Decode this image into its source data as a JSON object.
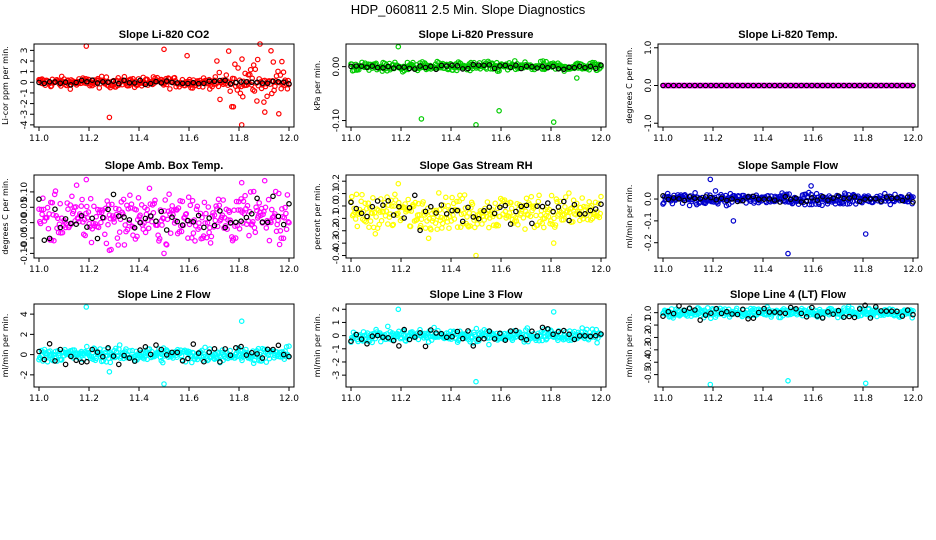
{
  "page_title": "HDP_060811  2.5 Min. Slope Diagnostics",
  "chart_data": [
    {
      "type": "scatter",
      "title": "Slope Li-820 CO2",
      "ylabel": "Li-cor ppm per min.",
      "xlim": [
        10.98,
        12.02
      ],
      "ylim": [
        -4.2,
        3.6
      ],
      "yticks": [
        -4,
        -3,
        -2,
        -1,
        0,
        1,
        2,
        3
      ],
      "ytick_labels": [
        "-4",
        "-3",
        "-2",
        "-1",
        "0",
        "1",
        "2",
        "3"
      ],
      "xticks": [
        11.0,
        11.2,
        11.4,
        11.6,
        11.8,
        12.0
      ],
      "xtick_labels": [
        "11.0",
        "11.2",
        "11.4",
        "11.6",
        "11.8",
        "12.0"
      ],
      "color": "#ff0000",
      "ref_color": "#000000",
      "center": 0.0,
      "spread": 0.35,
      "ref_spread": 0.15,
      "outlier_range": [
        11.7,
        11.98
      ],
      "outlier_spread": 2.0,
      "outlier_values": [
        3.4,
        3.1,
        -4.0,
        -3.3,
        2.5,
        -2.8
      ]
    },
    {
      "type": "scatter",
      "title": "Slope Li-820 Pressure",
      "ylabel": "kPa per min.",
      "xlim": [
        10.98,
        12.02
      ],
      "ylim": [
        -0.112,
        0.042
      ],
      "yticks": [
        -0.1,
        0.0
      ],
      "ytick_labels": [
        "-0.10",
        "0.00"
      ],
      "xticks": [
        11.0,
        11.2,
        11.4,
        11.6,
        11.8,
        12.0
      ],
      "xtick_labels": [
        "11.0",
        "11.2",
        "11.4",
        "11.6",
        "11.8",
        "12.0"
      ],
      "color": "#00cc00",
      "ref_color": "#000000",
      "center": 0.0,
      "spread": 0.006,
      "ref_spread": 0.004,
      "outlier_values": [
        0.037,
        -0.108,
        -0.103,
        -0.097,
        -0.082,
        -0.021
      ]
    },
    {
      "type": "scatter",
      "title": "Slope Li-820 Temp.",
      "ylabel": "degrees C per min.",
      "xlim": [
        10.98,
        12.02
      ],
      "ylim": [
        -1.1,
        1.1
      ],
      "yticks": [
        -1.0,
        0.0,
        1.0
      ],
      "ytick_labels": [
        "-1.0",
        "0.0",
        "1.0"
      ],
      "xticks": [
        11.0,
        11.2,
        11.4,
        11.6,
        11.8,
        12.0
      ],
      "xtick_labels": [
        "11.0",
        "11.2",
        "11.4",
        "11.6",
        "11.8",
        "12.0"
      ],
      "color": "#ff00ff",
      "ref_color": "#000000",
      "center": 0.0,
      "spread": 0.0,
      "ref_spread": 0.0,
      "outlier_values": []
    },
    {
      "type": "scatter",
      "title": "Slope Amb. Box Temp.",
      "ylabel": "degrees C per min.",
      "xlim": [
        10.98,
        12.02
      ],
      "ylim": [
        -0.115,
        0.155
      ],
      "yticks": [
        -0.1,
        -0.05,
        0.0,
        0.05,
        0.1
      ],
      "ytick_labels": [
        "-0.10",
        "-0.05",
        "0.00",
        "0.05",
        "0.10"
      ],
      "xticks": [
        11.0,
        11.2,
        11.4,
        11.6,
        11.8,
        12.0
      ],
      "xtick_labels": [
        "11.0",
        "11.2",
        "11.4",
        "11.6",
        "11.8",
        "12.0"
      ],
      "color": "#ff00ff",
      "ref_color": "#000000",
      "center": 0.015,
      "spread": 0.06,
      "ref_spread": 0.04,
      "outlier_values": [
        0.14,
        -0.1,
        0.13,
        -0.09
      ]
    },
    {
      "type": "scatter",
      "title": "Slope Gas Stream RH",
      "ylabel": "percent per min.",
      "xlim": [
        10.98,
        12.02
      ],
      "ylim": [
        -0.42,
        0.25
      ],
      "yticks": [
        -0.4,
        -0.3,
        -0.2,
        -0.1,
        0.0,
        0.1,
        0.2
      ],
      "ytick_labels": [
        "-0.4",
        "-0.3",
        "-0.2",
        "-0.1",
        "0.0",
        "0.1",
        "0.2"
      ],
      "xticks": [
        11.0,
        11.2,
        11.4,
        11.6,
        11.8,
        12.0
      ],
      "xtick_labels": [
        "11.0",
        "11.2",
        "11.4",
        "11.6",
        "11.8",
        "12.0"
      ],
      "color": "#ffff00",
      "ref_color": "#000000",
      "center": -0.05,
      "spread": 0.1,
      "ref_spread": 0.08,
      "outlier_values": [
        0.18,
        -0.4,
        -0.3
      ]
    },
    {
      "type": "scatter",
      "title": "Slope Sample Flow",
      "ylabel": "ml/min per min.",
      "xlim": [
        10.98,
        12.02
      ],
      "ylim": [
        -0.27,
        0.11
      ],
      "yticks": [
        -0.2,
        -0.1,
        0.0
      ],
      "ytick_labels": [
        "-0.2",
        "-0.1",
        "0.0"
      ],
      "xticks": [
        11.0,
        11.2,
        11.4,
        11.6,
        11.8,
        12.0
      ],
      "xtick_labels": [
        "11.0",
        "11.2",
        "11.4",
        "11.6",
        "11.8",
        "12.0"
      ],
      "color": "#0000cc",
      "ref_color": "#000000",
      "center": 0.0,
      "spread": 0.018,
      "ref_spread": 0.012,
      "outlier_values": [
        0.09,
        -0.25,
        -0.16,
        -0.1,
        0.06
      ]
    },
    {
      "type": "scatter",
      "title": "Slope Line 2 Flow",
      "ylabel": "ml/min per min.",
      "xlim": [
        10.98,
        12.02
      ],
      "ylim": [
        -3.2,
        5.0
      ],
      "yticks": [
        -2,
        0,
        2,
        4
      ],
      "ytick_labels": [
        "-2",
        "0",
        "2",
        "4"
      ],
      "xticks": [
        11.0,
        11.2,
        11.4,
        11.6,
        11.8,
        12.0
      ],
      "xtick_labels": [
        "11.0",
        "11.2",
        "11.4",
        "11.6",
        "11.8",
        "12.0"
      ],
      "color": "#00ffff",
      "ref_color": "#000000",
      "center": 0.0,
      "spread": 0.5,
      "ref_spread": 0.8,
      "outlier_values": [
        4.7,
        -2.9,
        3.3,
        -1.7
      ]
    },
    {
      "type": "scatter",
      "title": "Slope Line 3 Flow",
      "ylabel": "ml/min per min.",
      "xlim": [
        10.98,
        12.02
      ],
      "ylim": [
        -3.9,
        2.4
      ],
      "yticks": [
        -3,
        -2,
        -1,
        0,
        1,
        2
      ],
      "ytick_labels": [
        "-3",
        "-2",
        "-1",
        "0",
        "1",
        "2"
      ],
      "xticks": [
        11.0,
        11.2,
        11.4,
        11.6,
        11.8,
        12.0
      ],
      "xtick_labels": [
        "11.0",
        "11.2",
        "11.4",
        "11.6",
        "11.8",
        "12.0"
      ],
      "color": "#00ffff",
      "ref_color": "#000000",
      "center": 0.0,
      "spread": 0.35,
      "ref_spread": 0.6,
      "outlier_values": [
        2.0,
        -3.5,
        1.8
      ]
    },
    {
      "type": "scatter",
      "title": "Slope Line 4 (LT) Flow",
      "ylabel": "ml/min per min.",
      "xlim": [
        10.98,
        12.02
      ],
      "ylim": [
        -0.6,
        0.07
      ],
      "yticks": [
        -0.5,
        -0.4,
        -0.3,
        -0.2,
        -0.1,
        0.0
      ],
      "ytick_labels": [
        "-0.5",
        "-0.4",
        "-0.3",
        "-0.2",
        "-0.1",
        "0.0"
      ],
      "xticks": [
        11.0,
        11.2,
        11.4,
        11.6,
        11.8,
        12.0
      ],
      "xtick_labels": [
        "11.0",
        "11.2",
        "11.4",
        "11.6",
        "11.8",
        "12.0"
      ],
      "color": "#00ffff",
      "ref_color": "#000000",
      "center": 0.0,
      "spread": 0.025,
      "ref_spread": 0.04,
      "outlier_values": [
        -0.58,
        -0.55,
        -0.57
      ]
    }
  ]
}
